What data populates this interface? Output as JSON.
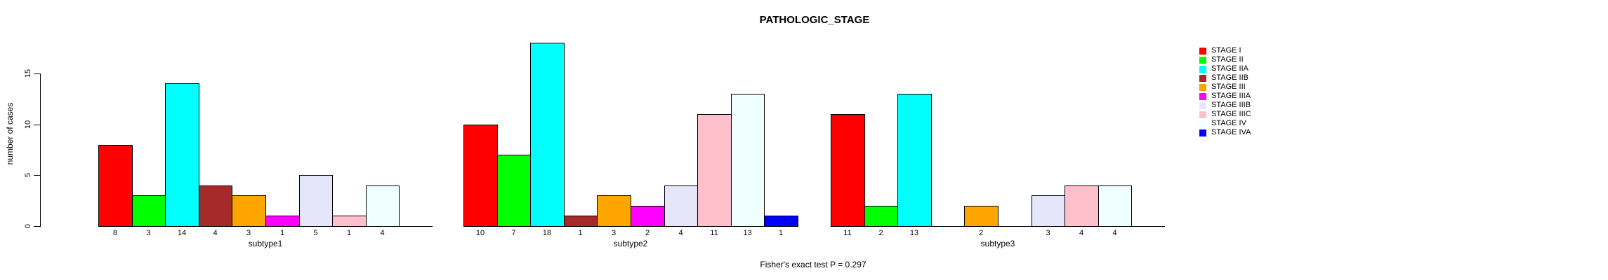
{
  "title": "PATHOLOGIC_STAGE",
  "ylabel": "number of cases",
  "footer": "Fisher's exact test P = 0.297",
  "legend": [
    {
      "label": "STAGE I",
      "color": "#FF0000"
    },
    {
      "label": "STAGE II",
      "color": "#00FF00"
    },
    {
      "label": "STAGE IIA",
      "color": "#00FFFF"
    },
    {
      "label": "STAGE IIB",
      "color": "#A52A2A"
    },
    {
      "label": "STAGE III",
      "color": "#FFA500"
    },
    {
      "label": "STAGE IIIA",
      "color": "#FF00FF"
    },
    {
      "label": "STAGE IIIB",
      "color": "#E6E6FA"
    },
    {
      "label": "STAGE IIIC",
      "color": "#FFC0CB"
    },
    {
      "label": "STAGE IV",
      "color": "#F0FFFF"
    },
    {
      "label": "STAGE IVA",
      "color": "#0000FF"
    }
  ],
  "chart_data": {
    "type": "bar",
    "title": "PATHOLOGIC_STAGE",
    "xlabel": "",
    "ylabel": "number of cases",
    "ylim": [
      0,
      18
    ],
    "yticks": [
      0,
      5,
      10,
      15
    ],
    "grid": false,
    "legend_position": "right",
    "bar_value_labels_shown": true,
    "categories": [
      "subtype1",
      "subtype2",
      "subtype3"
    ],
    "series": [
      {
        "name": "STAGE I",
        "color": "#FF0000",
        "values": [
          8,
          10,
          11
        ]
      },
      {
        "name": "STAGE II",
        "color": "#00FF00",
        "values": [
          3,
          7,
          2
        ]
      },
      {
        "name": "STAGE IIA",
        "color": "#00FFFF",
        "values": [
          14,
          18,
          13
        ]
      },
      {
        "name": "STAGE IIB",
        "color": "#A52A2A",
        "values": [
          4,
          1,
          0
        ]
      },
      {
        "name": "STAGE III",
        "color": "#FFA500",
        "values": [
          3,
          3,
          2
        ]
      },
      {
        "name": "STAGE IIIA",
        "color": "#FF00FF",
        "values": [
          1,
          2,
          0
        ]
      },
      {
        "name": "STAGE IIIB",
        "color": "#E6E6FA",
        "values": [
          5,
          4,
          3
        ]
      },
      {
        "name": "STAGE IIIC",
        "color": "#FFC0CB",
        "values": [
          1,
          11,
          4
        ]
      },
      {
        "name": "STAGE IV",
        "color": "#F0FFFF",
        "values": [
          4,
          13,
          4
        ]
      },
      {
        "name": "STAGE IVA",
        "color": "#0000FF",
        "values": [
          0,
          1,
          0
        ]
      }
    ],
    "annotation": "Fisher's exact test P = 0.297"
  }
}
